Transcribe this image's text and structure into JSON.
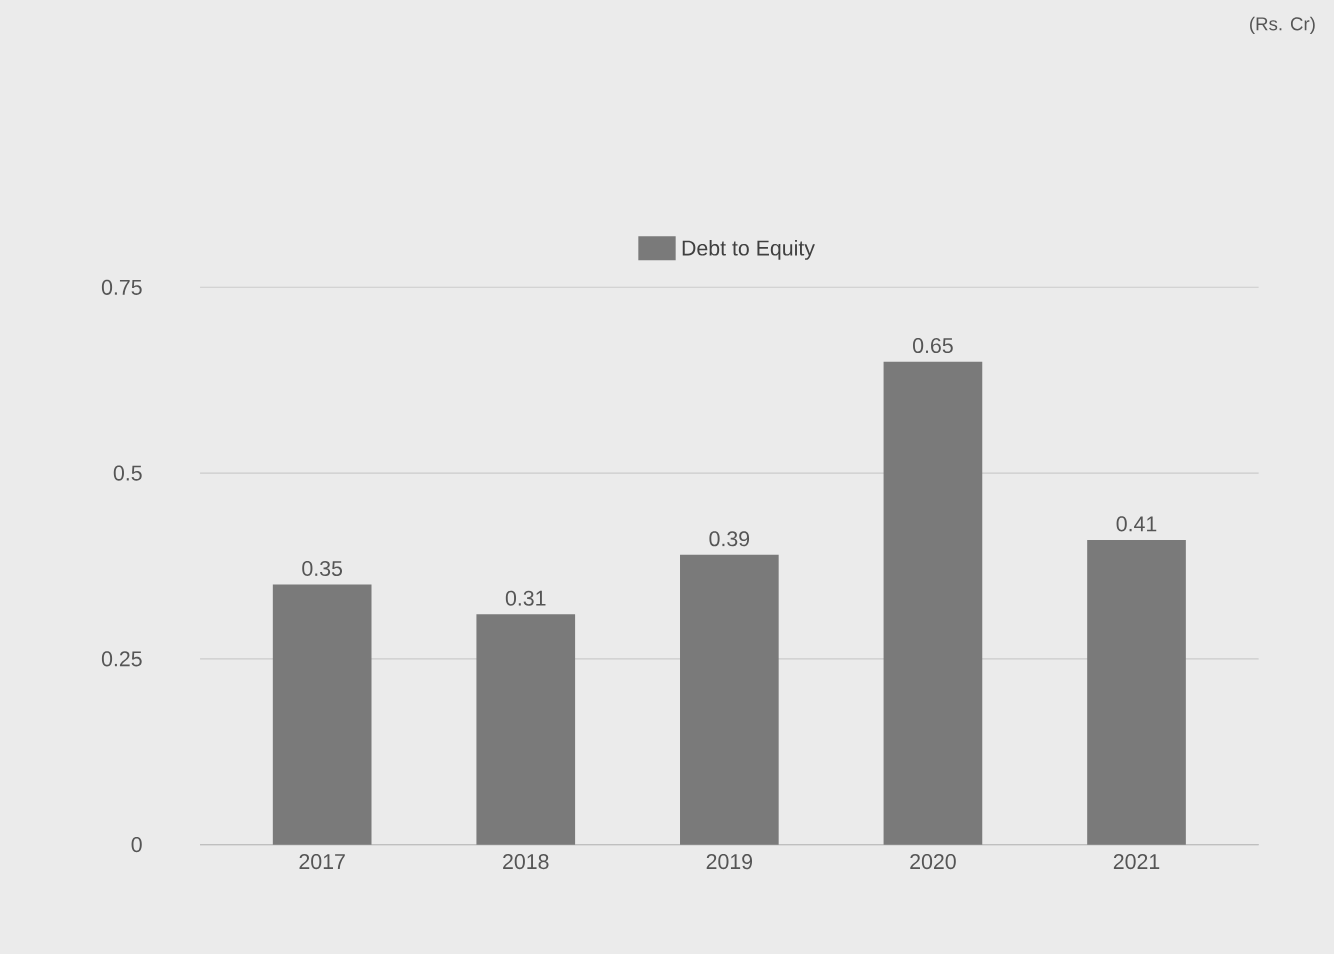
{
  "chart_data": {
    "type": "bar",
    "categories": [
      "2017",
      "2018",
      "2019",
      "2020",
      "2021"
    ],
    "series": [
      {
        "name": "Debt to Equity",
        "color": "#7a7a7a",
        "values": [
          0.35,
          0.31,
          0.39,
          0.65,
          0.41
        ]
      }
    ],
    "ylim": [
      0,
      0.75
    ],
    "yticks": [
      0,
      0.25,
      0.5,
      0.75
    ],
    "grid": "y",
    "legend": "top",
    "data_labels": true,
    "annotations": [
      "(Rs. Cr)"
    ]
  }
}
